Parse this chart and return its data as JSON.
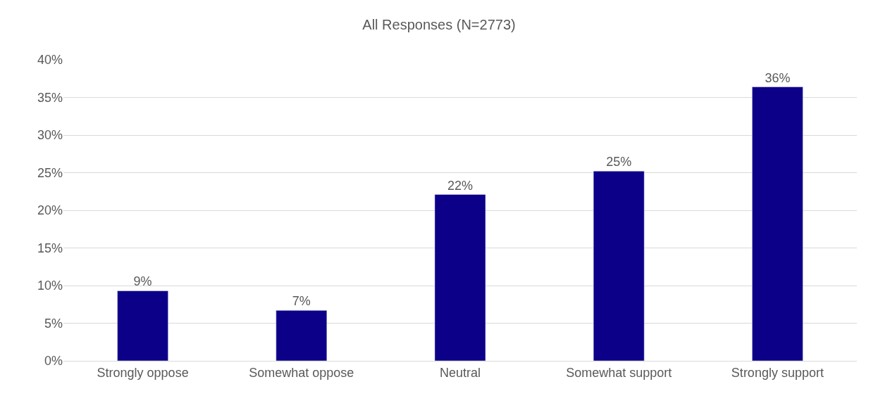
{
  "chart_data": {
    "type": "bar",
    "title": "All Responses (N=2773)",
    "categories": [
      "Strongly oppose",
      "Somewhat oppose",
      "Neutral",
      "Somewhat support",
      "Strongly support"
    ],
    "values": [
      9.3,
      6.7,
      22.1,
      25.2,
      36.4
    ],
    "value_labels": [
      "9%",
      "7%",
      "22%",
      "25%",
      "36%"
    ],
    "color": "#0c0089",
    "ylim": [
      0,
      40
    ],
    "yticks": [
      {
        "value": 0,
        "label": "0%"
      },
      {
        "value": 5,
        "label": "5%"
      },
      {
        "value": 10,
        "label": "10%"
      },
      {
        "value": 15,
        "label": "15%"
      },
      {
        "value": 20,
        "label": "20%"
      },
      {
        "value": 25,
        "label": "25%"
      },
      {
        "value": 30,
        "label": "30%"
      },
      {
        "value": 35,
        "label": "35%"
      },
      {
        "value": 40,
        "label": "40%"
      }
    ],
    "grid": "y",
    "legend": false
  }
}
